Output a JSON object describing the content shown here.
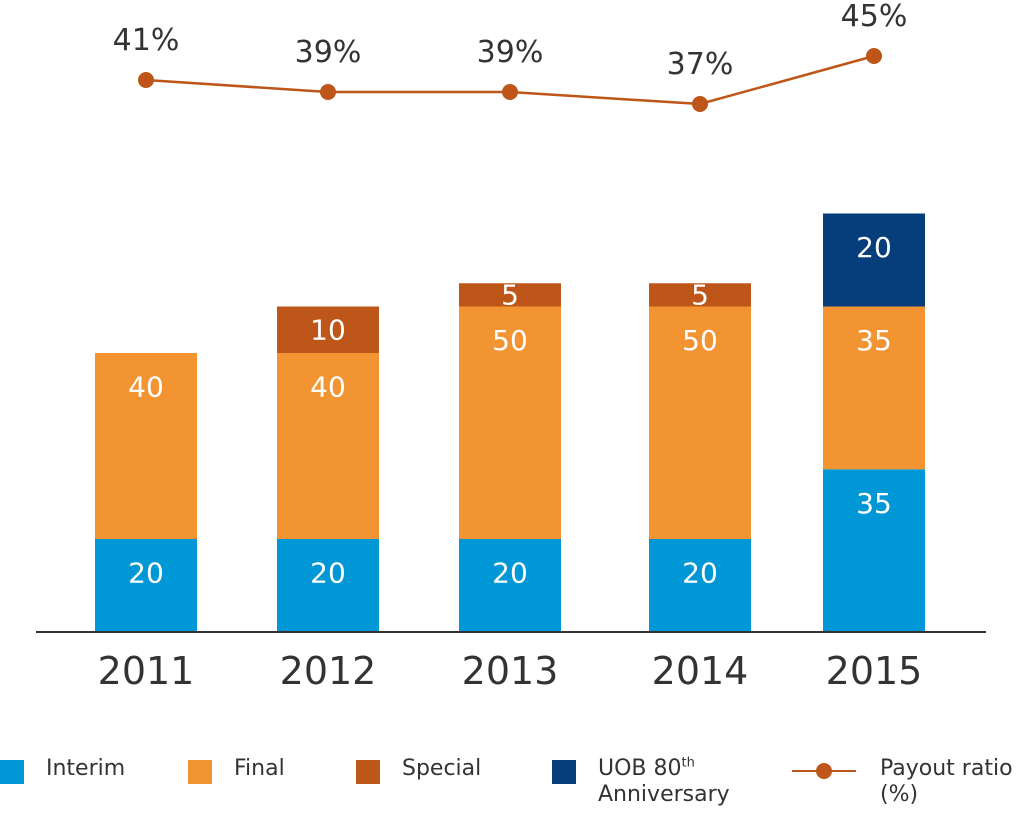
{
  "chart_data": {
    "type": "bar",
    "stacked": true,
    "categories": [
      "2011",
      "2012",
      "2013",
      "2014",
      "2015"
    ],
    "series": [
      {
        "name": "Interim",
        "color": "#0097d7",
        "values": [
          20,
          20,
          20,
          20,
          35
        ]
      },
      {
        "name": "Final",
        "color": "#f39433",
        "values": [
          40,
          40,
          50,
          50,
          35
        ]
      },
      {
        "name": "Special",
        "color": "#bd5618",
        "values": [
          0,
          10,
          5,
          5,
          0
        ]
      },
      {
        "name": "UOB 80th Anniversary",
        "color": "#053e7b",
        "values": [
          0,
          0,
          0,
          0,
          20
        ]
      }
    ],
    "line_series": {
      "name": "Payout ratio (%)",
      "color": "#bd5618",
      "values": [
        41,
        39,
        39,
        37,
        45
      ],
      "labels": [
        "41%",
        "39%",
        "39%",
        "37%",
        "45%"
      ]
    },
    "xlabel": "",
    "ylabel": "",
    "ylim": [
      0,
      100
    ],
    "grid": false,
    "legend_position": "bottom"
  },
  "legend": {
    "interim": "Interim",
    "final": "Final",
    "special": "Special",
    "anniversary_main": "UOB 80",
    "anniversary_sup": "th",
    "anniversary_line2": "Anniversary",
    "payout_line1": "Payout ratio",
    "payout_line2": "(%)"
  },
  "colors": {
    "axis": "#333333",
    "text_on_bar": "#ffffff",
    "text": "#333333"
  }
}
